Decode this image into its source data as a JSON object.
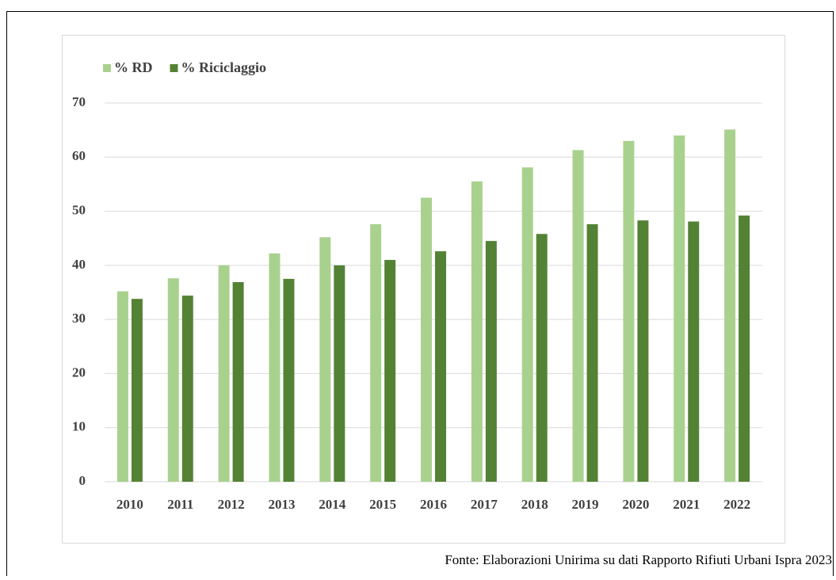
{
  "chart_data": {
    "type": "bar",
    "categories": [
      "2010",
      "2011",
      "2012",
      "2013",
      "2014",
      "2015",
      "2016",
      "2017",
      "2018",
      "2019",
      "2020",
      "2021",
      "2022"
    ],
    "series": [
      {
        "name": "% RD",
        "color": "#a9d18e",
        "values": [
          35.2,
          37.6,
          40.0,
          42.2,
          45.2,
          47.6,
          52.5,
          55.5,
          58.1,
          61.3,
          63.0,
          64.0,
          65.1
        ]
      },
      {
        "name": "% Riciclaggio",
        "color": "#548235",
        "values": [
          33.8,
          34.4,
          36.9,
          37.5,
          40.0,
          41.0,
          42.6,
          44.5,
          45.8,
          47.6,
          48.3,
          48.1,
          49.2
        ]
      }
    ],
    "ylim": [
      0,
      70
    ],
    "yticks": [
      0,
      10,
      20,
      30,
      40,
      50,
      60,
      70
    ],
    "grid": true,
    "source": "Fonte: Elaborazioni Unirima su dati Rapporto Rifiuti Urbani Ispra 2023"
  }
}
